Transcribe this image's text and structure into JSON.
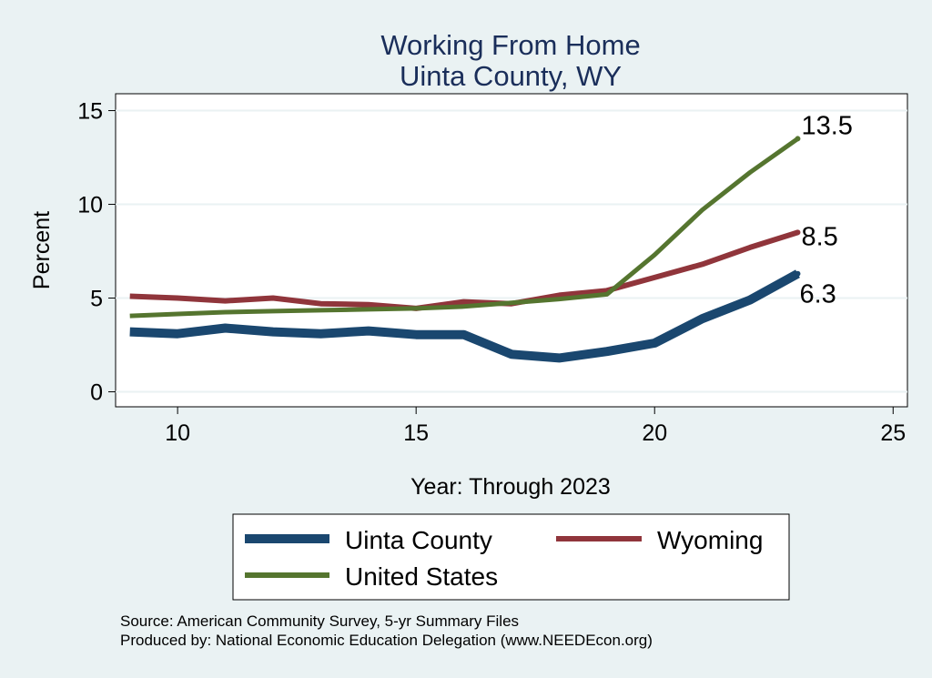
{
  "chart_data": {
    "type": "line",
    "title": "Working From Home",
    "subtitle": "Uinta County, WY",
    "xlabel": "Year: Through 2023",
    "ylabel": "Percent",
    "xlim": [
      8.7,
      25.3
    ],
    "ylim": [
      -0.8,
      15.9
    ],
    "xticks": [
      10,
      15,
      20,
      25
    ],
    "yticks": [
      0,
      5,
      10,
      15
    ],
    "grid": true,
    "legend_position": "bottom",
    "x": [
      9,
      10,
      11,
      12,
      13,
      14,
      15,
      16,
      17,
      18,
      19,
      20,
      21,
      22,
      23
    ],
    "series": [
      {
        "name": "Uinta County",
        "color": "#1a476f",
        "values": [
          3.2,
          3.1,
          3.4,
          3.2,
          3.1,
          3.25,
          3.05,
          3.05,
          2.0,
          1.8,
          2.15,
          2.6,
          3.9,
          4.9,
          6.3
        ],
        "end_label": "6.3"
      },
      {
        "name": "Wyoming",
        "color": "#90353b",
        "values": [
          5.1,
          5.0,
          4.85,
          5.0,
          4.7,
          4.65,
          4.45,
          4.8,
          4.7,
          5.15,
          5.4,
          6.1,
          6.8,
          7.7,
          8.5
        ],
        "end_label": "8.5"
      },
      {
        "name": "United States",
        "color": "#55752f",
        "values": [
          4.05,
          4.15,
          4.25,
          4.3,
          4.35,
          4.4,
          4.45,
          4.55,
          4.75,
          4.95,
          5.2,
          7.3,
          9.7,
          11.7,
          13.5
        ],
        "end_label": "13.5"
      }
    ]
  },
  "notes": {
    "source": "Source: American Community Survey, 5-yr Summary Files",
    "produced": "Produced by: National Economic Education Delegation (www.NEEDEcon.org)"
  }
}
